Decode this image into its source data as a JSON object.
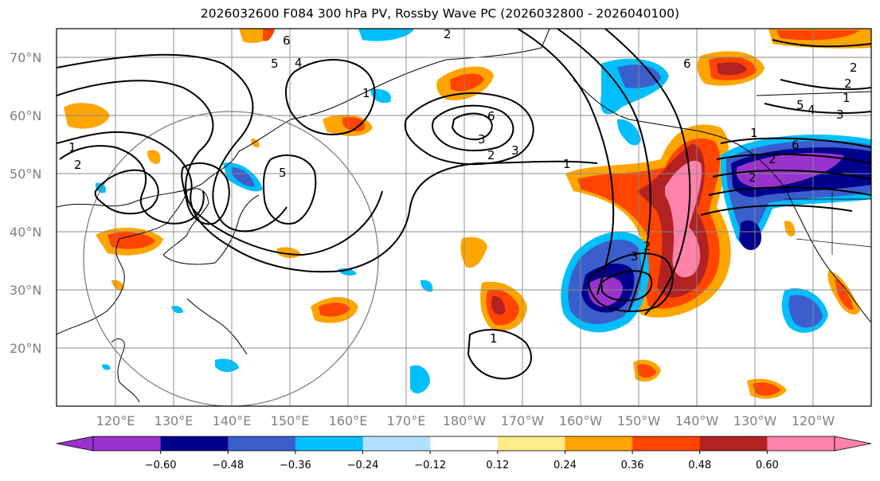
{
  "title": "2026032600 F084 300 hPa PV, Rossby Wave PC (2026032800 - 2026040100)",
  "axes": {
    "lon_ticks": [
      "120°E",
      "130°E",
      "140°E",
      "150°E",
      "160°E",
      "170°E",
      "180°W",
      "170°W",
      "160°W",
      "150°W",
      "140°W",
      "130°W",
      "120°W"
    ],
    "lat_ticks": [
      "70°N",
      "60°N",
      "50°N",
      "40°N",
      "30°N",
      "20°N"
    ]
  },
  "colorbar": {
    "colors": [
      "#9932cc",
      "#00008b",
      "#3a5fcd",
      "#00bfff",
      "#b0e2ff",
      "#ffffff",
      "#ffec8b",
      "#ffa500",
      "#ff4500",
      "#b22222",
      "#ff82ab"
    ],
    "tick_labels": [
      "−0.60",
      "−0.48",
      "−0.36",
      "−0.24",
      "−0.12",
      "0.12",
      "0.24",
      "0.36",
      "0.48",
      "0.60"
    ]
  },
  "contour_labels": [
    "2",
    "6",
    "5",
    "4",
    "6",
    "2",
    "3",
    "1",
    "5",
    "1",
    "2",
    "2",
    "6",
    "5",
    "4",
    "3",
    "2",
    "1",
    "2",
    "3",
    "1",
    "2",
    "1",
    "6",
    "2",
    "3",
    "1"
  ]
}
